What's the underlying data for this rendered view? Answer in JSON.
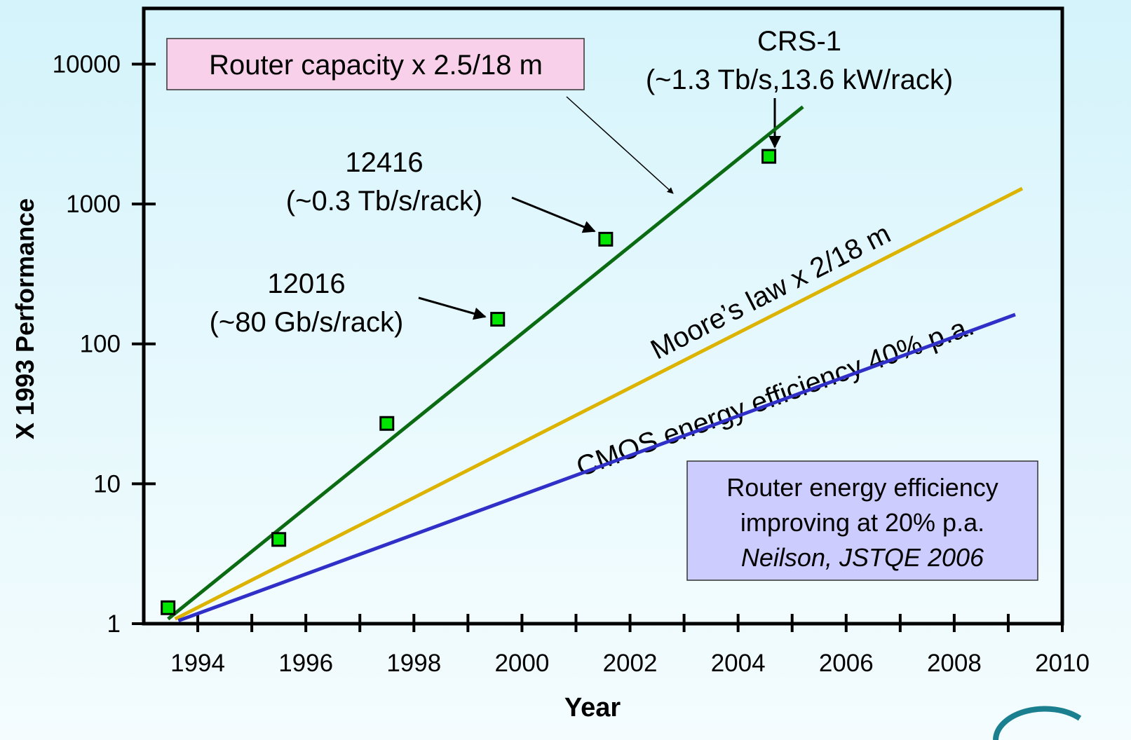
{
  "chart_data": {
    "type": "line",
    "xlabel": "Year",
    "ylabel": "X 1993 Performance",
    "log_y": true,
    "xlim": [
      1993,
      2010
    ],
    "ylim": [
      1,
      25000
    ],
    "xticks": [
      1994,
      1996,
      1998,
      2000,
      2002,
      2004,
      2006,
      2008,
      2010
    ],
    "xminorticks": [
      1995,
      1997,
      1999,
      2001,
      2003,
      2005,
      2007,
      2009
    ],
    "yticks": [
      1,
      10,
      100,
      1000,
      10000
    ],
    "series": [
      {
        "name": "Router capacity x 2.5/18 m",
        "color": "#0b6b12",
        "x": [
          1993.45,
          2005.2
        ],
        "values": [
          1.08,
          4950
        ]
      },
      {
        "name": "Moore’s law  x 2/18 m",
        "color": "#dcb400",
        "x": [
          1993.58,
          2009.26
        ],
        "values": [
          1.08,
          1290
        ]
      },
      {
        "name": "CMOS energy efficiency  40% p.a.",
        "color": "#3030c8",
        "x": [
          1993.64,
          2009.13
        ],
        "values": [
          1.05,
          162
        ]
      }
    ],
    "points": {
      "color": "#00e600",
      "x": [
        1993.45,
        1995.5,
        1997.5,
        1999.55,
        2001.55,
        2004.57
      ],
      "values": [
        1.3,
        4,
        27,
        150,
        560,
        2190
      ]
    },
    "annotations": [
      {
        "lines": [
          "CRS-1",
          "(~1.3 Tb/s,13.6 kW/rack)"
        ]
      },
      {
        "lines": [
          "12416",
          "(~0.3 Tb/s/rack)"
        ]
      },
      {
        "lines": [
          "12016",
          "(~80 Gb/s/rack)"
        ]
      },
      {
        "lines": [
          "Router energy efficiency",
          "improving at 20% p.a.",
          "Neilson, JSTQE 2006"
        ]
      }
    ]
  }
}
